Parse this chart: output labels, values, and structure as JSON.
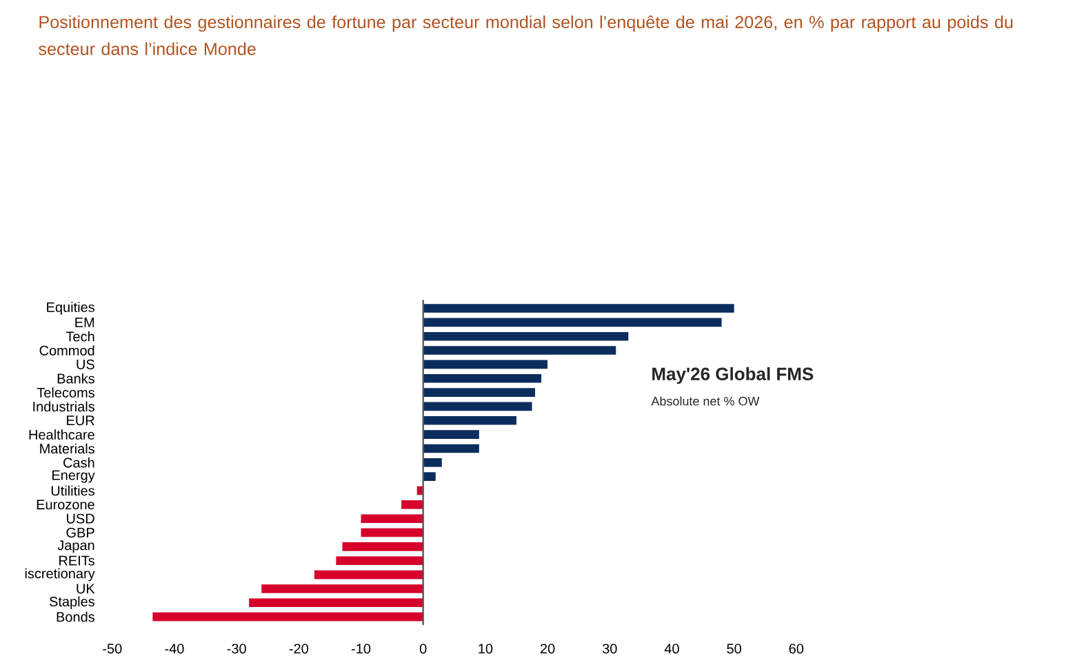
{
  "chart_data": {
    "type": "bar",
    "orientation": "horizontal",
    "title": "Positionnement des gestionnaires de fortune par secteur mondial selon l’enquête de mai 2026, en % par rapport au poids du secteur dans l’indice Monde",
    "categories": [
      "Equities",
      "EM",
      "Tech",
      "Commod",
      "US",
      "Banks",
      "Telecoms",
      "Industrials",
      "EUR",
      "Healthcare",
      "Materials",
      "Cash",
      "Energy",
      "Utilities",
      "Eurozone",
      "USD",
      "GBP",
      "Japan",
      "REITs",
      "iscretionary",
      "UK",
      "Staples",
      "Bonds"
    ],
    "values": [
      50,
      48,
      33,
      31,
      20,
      19,
      18,
      17.5,
      15,
      9,
      9,
      3,
      2,
      -1,
      -3.5,
      -10,
      -10,
      -13,
      -14,
      -17.5,
      -26,
      -28,
      -43.5
    ],
    "colors": [
      "#0b2d5e",
      "#0b2d5e",
      "#0b2d5e",
      "#0b2d5e",
      "#0b2d5e",
      "#0b2d5e",
      "#0b2d5e",
      "#0b2d5e",
      "#0b2d5e",
      "#0b2d5e",
      "#0b2d5e",
      "#0b2d5e",
      "#0b2d5e",
      "#d6002b",
      "#d6002b",
      "#d6002b",
      "#d6002b",
      "#d6002b",
      "#d6002b",
      "#d6002b",
      "#d6002b",
      "#d6002b",
      "#d6002b"
    ],
    "xlim": [
      -50,
      60
    ],
    "xticks": [
      -50,
      -40,
      -30,
      -20,
      -10,
      0,
      10,
      20,
      30,
      40,
      50,
      60
    ],
    "annotations": [
      "May'26 Global FMS",
      "Absolute net % OW"
    ]
  }
}
